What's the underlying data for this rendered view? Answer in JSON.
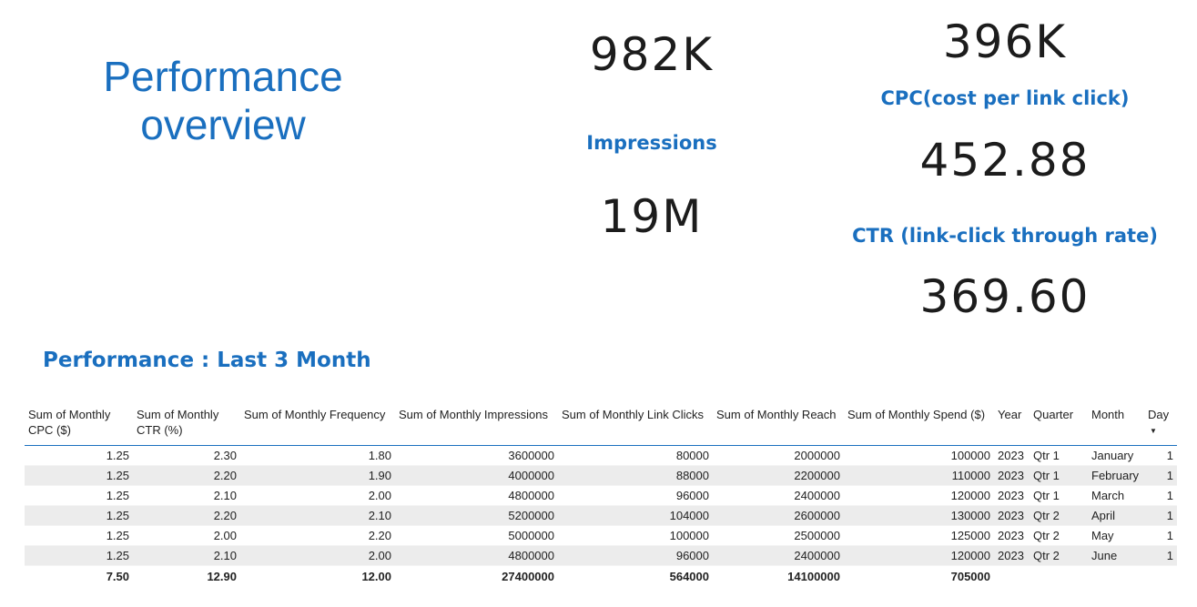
{
  "title": {
    "line1": "Performance",
    "line2": "overview"
  },
  "kpis": {
    "impressions_value": "982K",
    "impressions_label": "Impressions",
    "impressions_value2": "19M",
    "cpc_top_value": "396K",
    "cpc_label": "CPC(cost per link click)",
    "cpc_value": "452.88",
    "ctr_label": "CTR (link-click through rate)",
    "ctr_value": "369.60"
  },
  "section": {
    "title": "Performance : Last 3 Month"
  },
  "table": {
    "headers": [
      "Sum of Monthly CPC ($)",
      "Sum of Monthly CTR (%)",
      "Sum of Monthly Frequency",
      "Sum of Monthly Impressions",
      "Sum of Monthly Link Clicks",
      "Sum of Monthly Reach",
      "Sum of Monthly Spend ($)",
      "Year",
      "Quarter",
      "Month",
      "Day"
    ],
    "sort_column": "Day",
    "sort_direction": "descending",
    "sort_icon": "sort-desc-icon",
    "rows": [
      [
        "1.25",
        "2.30",
        "1.80",
        "3600000",
        "80000",
        "2000000",
        "100000",
        "2023",
        "Qtr 1",
        "January",
        "1"
      ],
      [
        "1.25",
        "2.20",
        "1.90",
        "4000000",
        "88000",
        "2200000",
        "110000",
        "2023",
        "Qtr 1",
        "February",
        "1"
      ],
      [
        "1.25",
        "2.10",
        "2.00",
        "4800000",
        "96000",
        "2400000",
        "120000",
        "2023",
        "Qtr 1",
        "March",
        "1"
      ],
      [
        "1.25",
        "2.20",
        "2.10",
        "5200000",
        "104000",
        "2600000",
        "130000",
        "2023",
        "Qtr 2",
        "April",
        "1"
      ],
      [
        "1.25",
        "2.00",
        "2.20",
        "5000000",
        "100000",
        "2500000",
        "125000",
        "2023",
        "Qtr 2",
        "May",
        "1"
      ],
      [
        "1.25",
        "2.10",
        "2.00",
        "4800000",
        "96000",
        "2400000",
        "120000",
        "2023",
        "Qtr 2",
        "June",
        "1"
      ]
    ],
    "totals": [
      "7.50",
      "12.90",
      "12.00",
      "27400000",
      "564000",
      "14100000",
      "705000",
      "",
      "",
      "",
      ""
    ]
  },
  "colors": {
    "accent": "#1a6fbf",
    "row_alt": "#ececec",
    "text": "#222222"
  }
}
